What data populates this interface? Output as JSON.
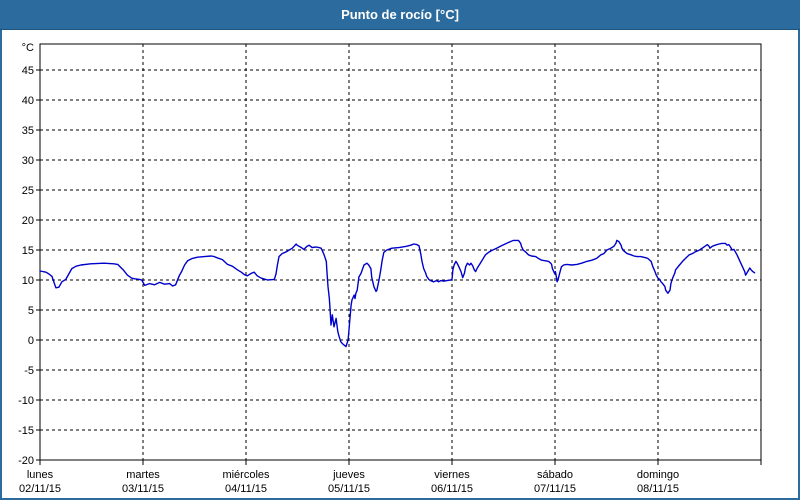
{
  "window": {
    "title": "Punto de rocío [°C]"
  },
  "colors": {
    "frame_border": "#2b6b9d",
    "titlebar_bg": "#2b6b9d",
    "titlebar_text": "#ffffff",
    "plot_bg": "#ffffff",
    "grid": "#000000",
    "axis": "#000000",
    "label": "#000000",
    "line": "#0000cc"
  },
  "chart_data": {
    "type": "line",
    "title": "Punto de rocío [°C]",
    "ylabel": "°C",
    "ylim": [
      -20,
      49.3
    ],
    "y_ticks": [
      45,
      40,
      35,
      30,
      25,
      20,
      15,
      10,
      5,
      0,
      -5,
      -10,
      -15,
      -20
    ],
    "x_hours_range": [
      0,
      168
    ],
    "grid": "dashed",
    "legend_position": "none",
    "x_days": [
      {
        "name": "lunes",
        "date": "02/11/15"
      },
      {
        "name": "martes",
        "date": "03/11/15"
      },
      {
        "name": "miércoles",
        "date": "04/11/15"
      },
      {
        "name": "jueves",
        "date": "05/11/15"
      },
      {
        "name": "viernes",
        "date": "06/11/15"
      },
      {
        "name": "sábado",
        "date": "07/11/15"
      },
      {
        "name": "domingo",
        "date": "08/11/15"
      }
    ],
    "series": [
      {
        "name": "Punto de rocío",
        "unit": "°C",
        "color": "#0000cc",
        "points": [
          [
            0,
            11.5
          ],
          [
            1.4,
            11.3
          ],
          [
            2.1,
            11
          ],
          [
            2.8,
            10.6
          ],
          [
            3.3,
            9.5
          ],
          [
            3.7,
            8.7
          ],
          [
            4.4,
            8.8
          ],
          [
            5.1,
            9.7
          ],
          [
            6,
            10.1
          ],
          [
            6.7,
            11
          ],
          [
            7.4,
            11.9
          ],
          [
            8.4,
            12.3
          ],
          [
            9.5,
            12.5
          ],
          [
            11.8,
            12.7
          ],
          [
            14.9,
            12.8
          ],
          [
            17.2,
            12.7
          ],
          [
            18.1,
            12.6
          ],
          [
            19.5,
            11.6
          ],
          [
            20.4,
            10.8
          ],
          [
            21.4,
            10.3
          ],
          [
            22.1,
            10.2
          ],
          [
            23.2,
            10.1
          ],
          [
            23.7,
            10
          ],
          [
            24.4,
            9.1
          ],
          [
            25.5,
            9.4
          ],
          [
            26.7,
            9.2
          ],
          [
            27.9,
            9.6
          ],
          [
            29,
            9.3
          ],
          [
            30.2,
            9.4
          ],
          [
            30.9,
            9
          ],
          [
            31.6,
            9.2
          ],
          [
            32.5,
            10.8
          ],
          [
            33,
            11.4
          ],
          [
            33.7,
            12.5
          ],
          [
            34.4,
            13.2
          ],
          [
            35.5,
            13.6
          ],
          [
            36.7,
            13.8
          ],
          [
            38.3,
            13.9
          ],
          [
            39.9,
            14
          ],
          [
            40.6,
            13.9
          ],
          [
            41.3,
            13.7
          ],
          [
            42.5,
            13.4
          ],
          [
            43.7,
            12.6
          ],
          [
            44.8,
            12.3
          ],
          [
            46,
            11.7
          ],
          [
            46.9,
            11.3
          ],
          [
            47.6,
            10.9
          ],
          [
            48.3,
            10.7
          ],
          [
            49.2,
            11.1
          ],
          [
            49.9,
            11.3
          ],
          [
            50.6,
            10.7
          ],
          [
            51.6,
            10.3
          ],
          [
            53,
            10
          ],
          [
            54.6,
            10.1
          ],
          [
            55,
            11
          ],
          [
            55.3,
            12.4
          ],
          [
            55.7,
            13.9
          ],
          [
            56.4,
            14.4
          ],
          [
            57.4,
            14.7
          ],
          [
            58.1,
            15
          ],
          [
            58.8,
            15.3
          ],
          [
            59.7,
            16
          ],
          [
            59.9,
            15.8
          ],
          [
            60.9,
            15.4
          ],
          [
            61.5,
            15.1
          ],
          [
            62.2,
            15.6
          ],
          [
            62.7,
            15.8
          ],
          [
            63.4,
            15.4
          ],
          [
            64.3,
            15.5
          ],
          [
            65,
            15.4
          ],
          [
            65.5,
            15.3
          ],
          [
            65.7,
            15
          ],
          [
            66.2,
            14.2
          ],
          [
            66.7,
            13.1
          ],
          [
            66.9,
            11
          ],
          [
            67.1,
            8.9
          ],
          [
            67.4,
            7
          ],
          [
            67.6,
            5
          ],
          [
            67.8,
            2.5
          ],
          [
            68.1,
            4.2
          ],
          [
            68.5,
            2.2
          ],
          [
            69,
            3.6
          ],
          [
            69.4,
            1.4
          ],
          [
            69.7,
            0.6
          ],
          [
            70.1,
            -0.3
          ],
          [
            70.6,
            -0.7
          ],
          [
            71.3,
            -1.1
          ],
          [
            71.8,
            0
          ],
          [
            72,
            1.7
          ],
          [
            72.2,
            3.5
          ],
          [
            72.5,
            5.8
          ],
          [
            72.7,
            6.7
          ],
          [
            73.2,
            7.5
          ],
          [
            73.4,
            6.9
          ],
          [
            73.6,
            7.8
          ],
          [
            73.9,
            8.3
          ],
          [
            74.3,
            10.5
          ],
          [
            74.8,
            11.1
          ],
          [
            75.5,
            12.5
          ],
          [
            76.2,
            12.8
          ],
          [
            76.6,
            12.5
          ],
          [
            77.1,
            11.9
          ],
          [
            77.3,
            10.5
          ],
          [
            77.8,
            8.9
          ],
          [
            78.3,
            8.1
          ],
          [
            78.5,
            8.3
          ],
          [
            79,
            10
          ],
          [
            79.4,
            11.7
          ],
          [
            79.7,
            13.1
          ],
          [
            80.1,
            14.6
          ],
          [
            80.8,
            15
          ],
          [
            82,
            15.3
          ],
          [
            83.6,
            15.4
          ],
          [
            85.2,
            15.6
          ],
          [
            86.4,
            15.8
          ],
          [
            87.1,
            16
          ],
          [
            87.8,
            15.9
          ],
          [
            88.3,
            15.7
          ],
          [
            88.7,
            14.4
          ],
          [
            89,
            13.1
          ],
          [
            89.4,
            11.9
          ],
          [
            89.9,
            11.1
          ],
          [
            90.1,
            10.6
          ],
          [
            90.6,
            10.1
          ],
          [
            91,
            9.9
          ],
          [
            91.7,
            9.7
          ],
          [
            92.4,
            9.9
          ],
          [
            92.9,
            9.7
          ],
          [
            93.4,
            9.9
          ],
          [
            94.1,
            9.8
          ],
          [
            94.8,
            9.9
          ],
          [
            95.7,
            10
          ],
          [
            96,
            10.1
          ],
          [
            96.2,
            11.7
          ],
          [
            96.5,
            12.5
          ],
          [
            96.9,
            13.1
          ],
          [
            97.2,
            12.8
          ],
          [
            97.6,
            12.2
          ],
          [
            98.1,
            11.4
          ],
          [
            98.5,
            10.4
          ],
          [
            98.9,
            11.1
          ],
          [
            99.2,
            12.2
          ],
          [
            99.6,
            12.8
          ],
          [
            100.1,
            12.5
          ],
          [
            100.4,
            12.8
          ],
          [
            100.8,
            12.4
          ],
          [
            101.2,
            11.7
          ],
          [
            101.5,
            11.4
          ],
          [
            101.9,
            12
          ],
          [
            102.6,
            12.8
          ],
          [
            103.3,
            13.6
          ],
          [
            103.8,
            14.2
          ],
          [
            104.5,
            14.6
          ],
          [
            105.2,
            14.9
          ],
          [
            106.4,
            15.3
          ],
          [
            107.5,
            15.7
          ],
          [
            108.7,
            16.1
          ],
          [
            109.6,
            16.4
          ],
          [
            110.3,
            16.6
          ],
          [
            111.5,
            16.6
          ],
          [
            112,
            16.1
          ],
          [
            112.2,
            15.6
          ],
          [
            112.6,
            15
          ],
          [
            113.1,
            14.7
          ],
          [
            113.8,
            14.2
          ],
          [
            114.5,
            14
          ],
          [
            115.5,
            13.9
          ],
          [
            116.1,
            13.6
          ],
          [
            116.9,
            13.3
          ],
          [
            117.8,
            13.2
          ],
          [
            118.5,
            13.1
          ],
          [
            119,
            12.8
          ],
          [
            119.2,
            12.6
          ],
          [
            119.4,
            11.9
          ],
          [
            119.9,
            11.1
          ],
          [
            120.1,
            11.4
          ],
          [
            120.3,
            10.6
          ],
          [
            120.5,
            9.7
          ],
          [
            120.8,
            10.3
          ],
          [
            121.2,
            11.4
          ],
          [
            121.5,
            12.2
          ],
          [
            122,
            12.5
          ],
          [
            122.7,
            12.6
          ],
          [
            123.9,
            12.5
          ],
          [
            125.1,
            12.6
          ],
          [
            126.2,
            12.8
          ],
          [
            127.4,
            13.1
          ],
          [
            128.6,
            13.3
          ],
          [
            129.7,
            13.6
          ],
          [
            130.7,
            14.2
          ],
          [
            131.4,
            14.4
          ],
          [
            132.1,
            15
          ],
          [
            133,
            15.3
          ],
          [
            133.7,
            15.6
          ],
          [
            134.2,
            16.1
          ],
          [
            134.4,
            16.6
          ],
          [
            134.9,
            16.4
          ],
          [
            135.4,
            15.8
          ],
          [
            135.6,
            15.3
          ],
          [
            136.1,
            14.8
          ],
          [
            136.8,
            14.4
          ],
          [
            137.7,
            14.2
          ],
          [
            138.4,
            14
          ],
          [
            139.1,
            13.9
          ],
          [
            140,
            13.9
          ],
          [
            141.2,
            13.7
          ],
          [
            141.6,
            13.6
          ],
          [
            142.4,
            13.1
          ],
          [
            142.8,
            12.2
          ],
          [
            143.3,
            11.4
          ],
          [
            143.6,
            10.8
          ],
          [
            144,
            10.3
          ],
          [
            144.4,
            10.1
          ],
          [
            144.7,
            9.7
          ],
          [
            145.1,
            9.4
          ],
          [
            145.6,
            8.9
          ],
          [
            145.8,
            8.3
          ],
          [
            146.3,
            7.8
          ],
          [
            146.8,
            8.3
          ],
          [
            147,
            9.4
          ],
          [
            147.4,
            10.3
          ],
          [
            147.9,
            11.1
          ],
          [
            148.1,
            11.7
          ],
          [
            149,
            12.5
          ],
          [
            149.7,
            13.1
          ],
          [
            150.4,
            13.6
          ],
          [
            151.3,
            14.2
          ],
          [
            152,
            14.4
          ],
          [
            152.7,
            14.7
          ],
          [
            153.7,
            15
          ],
          [
            154.3,
            15.3
          ],
          [
            155.1,
            15.7
          ],
          [
            155.5,
            15.9
          ],
          [
            155.9,
            15.6
          ],
          [
            156.1,
            15.3
          ],
          [
            156.6,
            15.6
          ],
          [
            157.3,
            15.8
          ],
          [
            158.2,
            16
          ],
          [
            158.9,
            16.1
          ],
          [
            159.7,
            16.1
          ],
          [
            160.1,
            15.8
          ],
          [
            160.5,
            15.9
          ],
          [
            160.8,
            15.6
          ],
          [
            161.3,
            15
          ],
          [
            161.7,
            15.1
          ],
          [
            162,
            14.7
          ],
          [
            162.4,
            14.2
          ],
          [
            163.1,
            13.1
          ],
          [
            163.7,
            12.2
          ],
          [
            164.2,
            11.4
          ],
          [
            164.4,
            10.8
          ],
          [
            164.9,
            11.4
          ],
          [
            165.4,
            12
          ],
          [
            165.7,
            11.7
          ],
          [
            166.1,
            11.4
          ],
          [
            166.5,
            11.2
          ]
        ]
      }
    ]
  }
}
